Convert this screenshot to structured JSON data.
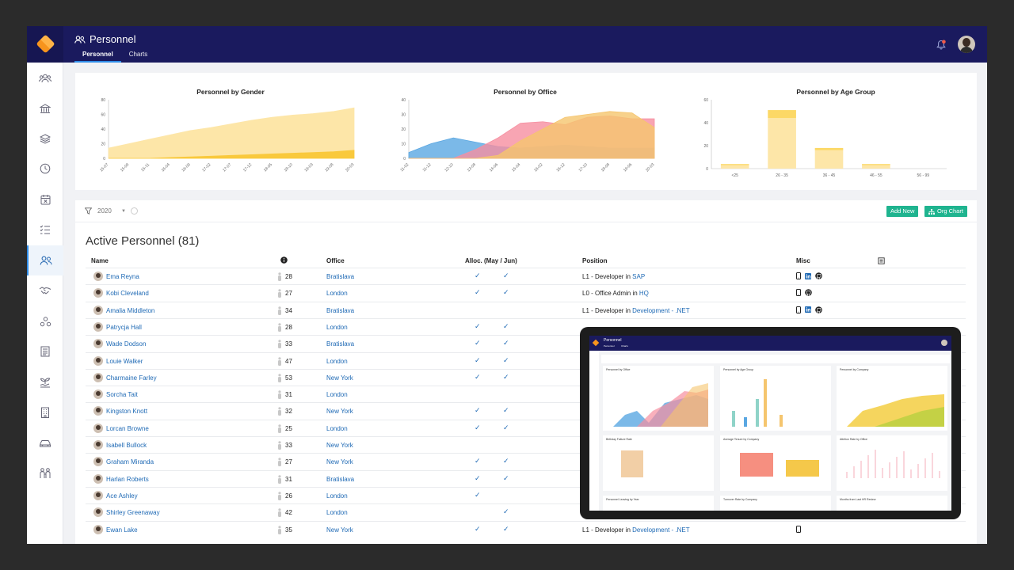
{
  "header": {
    "title": "Personnel",
    "tabs": [
      {
        "label": "Personnel"
      },
      {
        "label": "Charts"
      }
    ]
  },
  "sidebar": {
    "icons": [
      "people-icon",
      "bank-icon",
      "layers-icon",
      "clock-icon",
      "calendar-x-icon",
      "checklist-icon",
      "personnel-icon",
      "handshake-icon",
      "org-icon",
      "document-icon",
      "plant-icon",
      "building-icon",
      "car-icon",
      "team-icon"
    ]
  },
  "charts": {
    "gender": {
      "title": "Personnel by Gender",
      "y_ticks": [
        "80",
        "60",
        "40",
        "20",
        "0"
      ],
      "x_ticks": [
        "15-07",
        "15-09",
        "15-11",
        "16-04",
        "16-09",
        "17-02",
        "17-07",
        "17-12",
        "18-05",
        "18-10",
        "19-03",
        "19-08",
        "20-03"
      ]
    },
    "office": {
      "title": "Personnel by Office",
      "y_ticks": [
        "40",
        "30",
        "20",
        "10",
        "0"
      ],
      "x_ticks": [
        "11-02",
        "11-12",
        "12-10",
        "13-08",
        "14-06",
        "15-04",
        "16-02",
        "16-12",
        "17-10",
        "18-08",
        "19-06",
        "20-03"
      ]
    },
    "age": {
      "title": "Personnel by Age Group",
      "y_ticks": [
        "60",
        "40",
        "20",
        "0"
      ],
      "x_ticks": [
        "<25",
        "26 - 35",
        "36 - 45",
        "46 - 55",
        "56 - 99"
      ]
    }
  },
  "chart_data": [
    {
      "type": "area",
      "title": "Personnel by Gender",
      "ylim": [
        0,
        80
      ],
      "x": [
        "15-07",
        "15-09",
        "15-11",
        "16-04",
        "16-09",
        "17-02",
        "17-07",
        "17-12",
        "18-05",
        "18-10",
        "19-03",
        "19-08",
        "20-03"
      ],
      "series": [
        {
          "values": [
            14,
            20,
            26,
            32,
            38,
            42,
            47,
            52,
            56,
            59,
            61,
            64,
            69
          ],
          "color": "#fde6a8"
        },
        {
          "values": [
            0,
            0,
            0,
            1,
            2,
            3,
            4,
            5,
            6,
            7,
            8,
            9,
            11
          ],
          "color": "#f9c93c"
        }
      ]
    },
    {
      "type": "area",
      "title": "Personnel by Office",
      "ylim": [
        0,
        40
      ],
      "x": [
        "11-02",
        "11-12",
        "12-10",
        "13-08",
        "14-06",
        "15-04",
        "16-02",
        "16-12",
        "17-10",
        "18-08",
        "19-06",
        "20-03"
      ],
      "series": [
        {
          "values": [
            4,
            10,
            14,
            11,
            8,
            7,
            8,
            9,
            8,
            7,
            7,
            7
          ],
          "color": "#5aa7e2"
        },
        {
          "values": [
            0,
            0,
            0,
            6,
            14,
            24,
            25,
            23,
            28,
            29,
            27,
            27
          ],
          "color": "#f68fa0"
        },
        {
          "values": [
            0,
            0,
            0,
            0,
            2,
            12,
            20,
            28,
            30,
            32,
            31,
            21
          ],
          "color": "#f5c56e"
        }
      ]
    },
    {
      "type": "bar",
      "title": "Personnel by Age Group",
      "ylim": [
        0,
        60
      ],
      "categories": [
        "<25",
        "26 - 35",
        "36 - 45",
        "46 - 55",
        "56 - 99"
      ],
      "series": [
        {
          "values": [
            3,
            44,
            16,
            3,
            0
          ],
          "color": "#fde6a8"
        },
        {
          "values": [
            1,
            7,
            2,
            1,
            0
          ],
          "color": "#fcd866"
        }
      ]
    }
  ],
  "filter": {
    "year": "2020"
  },
  "buttons": {
    "add_new": "Add New",
    "org_chart": "Org Chart"
  },
  "heading": "Active Personnel (81)",
  "table": {
    "headers": {
      "name": "Name",
      "office": "Office",
      "alloc": "Alloc. (May / Jun)",
      "position": "Position",
      "misc": "Misc"
    },
    "rows": [
      {
        "name": "Ema Reyna",
        "age": "28",
        "office": "Bratislava",
        "may": true,
        "jun": true,
        "pos_role": "L1 - Developer in ",
        "pos_unit": "SAP",
        "misc": [
          "phone",
          "linkedin",
          "github"
        ]
      },
      {
        "name": "Kobi Cleveland",
        "age": "27",
        "office": "London",
        "may": true,
        "jun": true,
        "pos_role": "L0 - Office Admin in ",
        "pos_unit": "HQ",
        "misc": [
          "phone",
          "github"
        ]
      },
      {
        "name": "Amalia Middleton",
        "age": "34",
        "office": "Bratislava",
        "may": false,
        "jun": false,
        "pos_role": "L1 - Developer in ",
        "pos_unit": "Development - .NET",
        "misc": [
          "phone",
          "linkedin",
          "github"
        ]
      },
      {
        "name": "Patrycja Hall",
        "age": "28",
        "office": "London",
        "may": true,
        "jun": true,
        "pos_role": "",
        "pos_unit": "",
        "misc": []
      },
      {
        "name": "Wade Dodson",
        "age": "33",
        "office": "Bratislava",
        "may": true,
        "jun": true,
        "pos_role": "",
        "pos_unit": "",
        "misc": []
      },
      {
        "name": "Louie Walker",
        "age": "47",
        "office": "London",
        "may": true,
        "jun": true,
        "pos_role": "",
        "pos_unit": "",
        "misc": []
      },
      {
        "name": "Charmaine Farley",
        "age": "53",
        "office": "New York",
        "may": true,
        "jun": true,
        "pos_role": "",
        "pos_unit": "",
        "misc": []
      },
      {
        "name": "Sorcha Tait",
        "age": "31",
        "office": "London",
        "may": false,
        "jun": false,
        "pos_role": "",
        "pos_unit": "",
        "misc": []
      },
      {
        "name": "Kingston Knott",
        "age": "32",
        "office": "New York",
        "may": true,
        "jun": true,
        "pos_role": "",
        "pos_unit": "",
        "misc": []
      },
      {
        "name": "Lorcan Browne",
        "age": "25",
        "office": "London",
        "may": true,
        "jun": true,
        "pos_role": "",
        "pos_unit": "",
        "misc": []
      },
      {
        "name": "Isabell Bullock",
        "age": "33",
        "office": "New York",
        "may": false,
        "jun": false,
        "pos_role": "",
        "pos_unit": "",
        "misc": []
      },
      {
        "name": "Graham Miranda",
        "age": "27",
        "office": "New York",
        "may": true,
        "jun": true,
        "pos_role": "",
        "pos_unit": "",
        "misc": []
      },
      {
        "name": "Harlan Roberts",
        "age": "31",
        "office": "Bratislava",
        "may": true,
        "jun": true,
        "pos_role": "",
        "pos_unit": "",
        "misc": []
      },
      {
        "name": "Ace Ashley",
        "age": "26",
        "office": "London",
        "may": true,
        "jun": false,
        "pos_role": "",
        "pos_unit": "",
        "misc": []
      },
      {
        "name": "Shirley Greenaway",
        "age": "42",
        "office": "London",
        "may": false,
        "jun": true,
        "pos_role": "",
        "pos_unit": "",
        "misc": []
      },
      {
        "name": "Ewan Lake",
        "age": "35",
        "office": "New York",
        "may": true,
        "jun": true,
        "pos_role": "L1 - Developer in ",
        "pos_unit": "Development - .NET",
        "misc": [
          "phone"
        ]
      }
    ]
  },
  "tablet": {
    "title": "Personnel",
    "tabs": [
      "Personnel",
      "Charts"
    ],
    "cards": [
      "Personnel by Office",
      "Personnel by Age Group",
      "Personnel by Company",
      "Birthday Failure Rate",
      "Average Tenure by Company",
      "Attrition Rate by Office",
      "Personnel Leaving by Year",
      "Turnover Rate by Company",
      "Months from Last HR Review"
    ]
  }
}
